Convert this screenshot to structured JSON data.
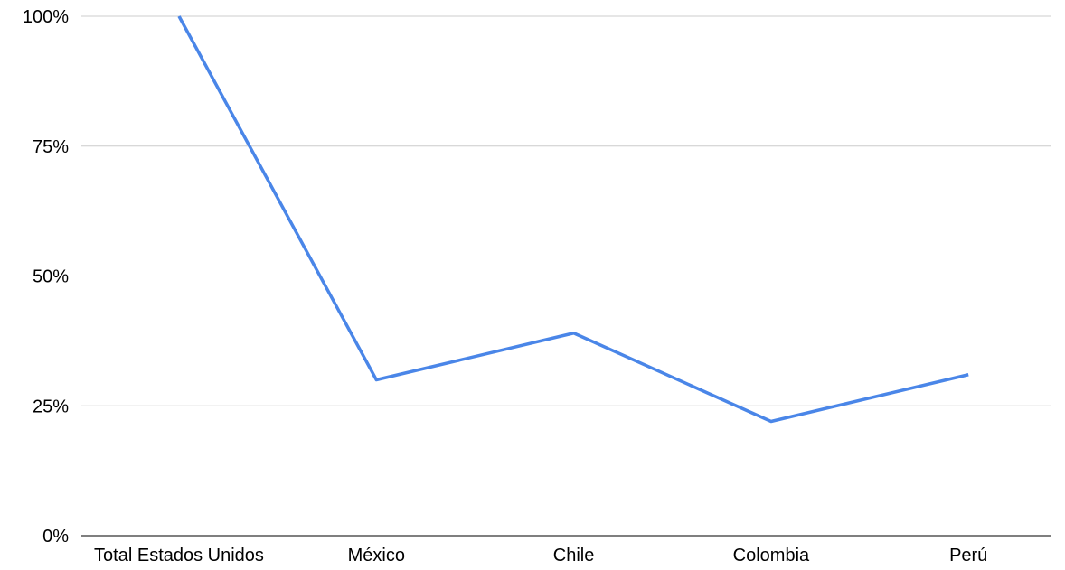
{
  "chart_data": {
    "type": "line",
    "title": "",
    "xlabel": "",
    "ylabel": "",
    "categories": [
      "Total Estados Unidos",
      "México",
      "Chile",
      "Colombia",
      "Perú"
    ],
    "series": [
      {
        "values": [
          100,
          30,
          39,
          22,
          31
        ]
      }
    ],
    "ylim": [
      0,
      100
    ],
    "yticks": [
      0,
      25,
      50,
      75,
      100
    ],
    "ytick_labels": [
      "0%",
      "25%",
      "50%",
      "75%",
      "100%"
    ],
    "grid": true,
    "legend": "none",
    "colors": {
      "line": "#4a86e8",
      "grid": "#cccccc",
      "axis": "#333333",
      "text": "#000000"
    }
  }
}
